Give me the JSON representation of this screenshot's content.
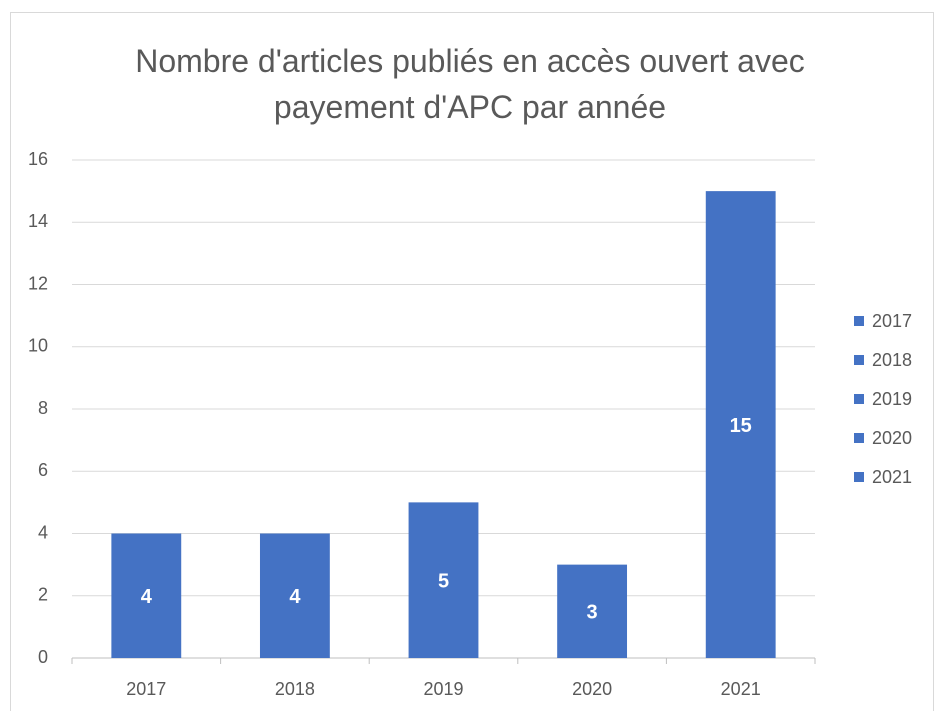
{
  "chart_data": {
    "type": "bar",
    "title": "Nombre d'articles publiés en accès ouvert avec payement d'APC par année",
    "categories": [
      "2017",
      "2018",
      "2019",
      "2020",
      "2021"
    ],
    "values": [
      4,
      4,
      5,
      3,
      15
    ],
    "color": "#4472c4",
    "ylim": [
      0,
      16
    ],
    "yticks": [
      0,
      2,
      4,
      6,
      8,
      10,
      12,
      14,
      16
    ],
    "grid": true,
    "legend": "right",
    "data_labels": true
  }
}
